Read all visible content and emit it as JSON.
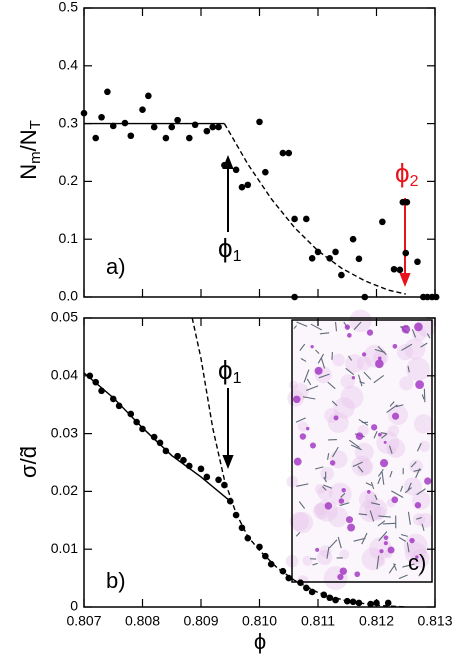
{
  "chart_data": [
    {
      "type": "scatter",
      "ylabel_parts": [
        {
          "text": "N"
        },
        {
          "text": "m",
          "sub": true
        },
        {
          "text": "/N"
        },
        {
          "text": "T",
          "sub": true
        }
      ],
      "annotations": {
        "panel": "a)",
        "phi1": {
          "text": "ϕ",
          "sub": "1"
        },
        "phi2": {
          "text": "ϕ",
          "sub": "2"
        }
      },
      "xlim": [
        0.807,
        0.813
      ],
      "ylim": [
        0,
        0.5
      ],
      "yticks": [
        {
          "value": 0,
          "label": "0.0"
        },
        0.1,
        0.2,
        0.3,
        0.4,
        0.5
      ],
      "points": {
        "color": "#000000",
        "x": [
          0.807,
          0.8072,
          0.8073,
          0.8074,
          0.8075,
          0.8077,
          0.8078,
          0.808,
          0.8081,
          0.8082,
          0.8084,
          0.8085,
          0.8086,
          0.8088,
          0.8089,
          0.8091,
          0.8092,
          0.8093,
          0.8094,
          0.8096,
          0.8097,
          0.8098,
          0.81,
          0.8101,
          0.8104,
          0.8105,
          0.8106,
          0.8106,
          0.8108,
          0.8109,
          0.811,
          0.8112,
          0.8113,
          0.8114,
          0.8116,
          0.8117,
          0.8118,
          0.8121,
          0.8123,
          0.8124,
          0.81245,
          0.81252,
          0.8125,
          0.8127,
          0.8128,
          0.81287,
          0.81295,
          0.81302
        ],
        "values": [
          0.318,
          0.275,
          0.311,
          0.355,
          0.296,
          0.301,
          0.279,
          0.324,
          0.348,
          0.294,
          0.275,
          0.294,
          0.306,
          0.275,
          0.298,
          0.287,
          0.294,
          0.294,
          0.228,
          0.22,
          0.19,
          0.194,
          0.303,
          0.216,
          0.249,
          0.249,
          0,
          0.135,
          0.135,
          0.067,
          0.078,
          0.067,
          0.078,
          0.038,
          0.1,
          0.066,
          0,
          0.13,
          0.048,
          0.047,
          0.164,
          0.164,
          0.076,
          0.061,
          0,
          0,
          0,
          0
        ]
      },
      "lines": [
        {
          "style": "solid",
          "color": "#000000",
          "x": [
            0.807,
            0.8094
          ],
          "values": [
            0.3,
            0.3
          ]
        },
        {
          "style": "dashed",
          "color": "#000000",
          "x": [
            0.8094,
            0.8098,
            0.8102,
            0.8106,
            0.811,
            0.8114,
            0.8118,
            0.8122,
            0.8125
          ],
          "values": [
            0.3,
            0.23,
            0.17,
            0.12,
            0.08,
            0.05,
            0.028,
            0.012,
            0.005
          ]
        }
      ]
    },
    {
      "type": "scatter",
      "xlabel": "ϕ",
      "ylabel": "σ/d̃",
      "annotations": {
        "panel": "b)",
        "inset": "c)",
        "phi1": {
          "text": "ϕ",
          "sub": "1"
        }
      },
      "xlim": [
        0.807,
        0.813
      ],
      "xticks": [
        0.807,
        0.808,
        0.809,
        {
          "value": 0.81,
          "label": "0.810"
        },
        0.811,
        0.812,
        0.813
      ],
      "ylim": [
        0,
        0.05
      ],
      "yticks": [
        0,
        0.01,
        0.02,
        0.03,
        0.04,
        0.05
      ],
      "points": {
        "color": "#000000",
        "x": [
          0.8071,
          0.8072,
          0.8073,
          0.8075,
          0.8076,
          0.8078,
          0.8079,
          0.808,
          0.8082,
          0.8083,
          0.8084,
          0.8086,
          0.8087,
          0.8088,
          0.809,
          0.8091,
          0.8093,
          0.8094,
          0.8095,
          0.8096,
          0.8097,
          0.8098,
          0.81,
          0.8101,
          0.8102,
          0.8104,
          0.8105,
          0.8107,
          0.8108,
          0.8109,
          0.8111,
          0.8112,
          0.8113,
          0.8115,
          0.8116,
          0.8117,
          0.8119,
          0.812,
          0.8122
        ],
        "values": [
          0.04,
          0.0389,
          0.0374,
          0.036,
          0.0348,
          0.0334,
          0.032,
          0.0308,
          0.0294,
          0.0284,
          0.027,
          0.0261,
          0.0254,
          0.0244,
          0.0239,
          0.0225,
          0.022,
          0.0211,
          0.0183,
          0.0159,
          0.0137,
          0.0119,
          0.0104,
          0.0088,
          0.0074,
          0.0062,
          0.005,
          0.0042,
          0.0033,
          0.0026,
          0.0021,
          0.0016,
          0.0012,
          0.001,
          0.0009,
          0.0007,
          0.0005,
          0.0007,
          0.0007
        ]
      },
      "lines": [
        {
          "style": "solid",
          "color": "#000000",
          "x": [
            0.807,
            0.8075,
            0.808,
            0.8085,
            0.809,
            0.8095
          ],
          "values": [
            0.0405,
            0.0362,
            0.031,
            0.0262,
            0.0225,
            0.0183
          ]
        },
        {
          "style": "dashed",
          "color": "#000000",
          "x": [
            0.80885,
            0.809,
            0.8092,
            0.8094,
            0.8096,
            0.8098,
            0.81,
            0.8103,
            0.8106,
            0.811,
            0.8115,
            0.812,
            0.8125
          ],
          "values": [
            0.05,
            0.043,
            0.031,
            0.022,
            0.0162,
            0.0122,
            0.0098,
            0.0068,
            0.0046,
            0.0025,
            0.001,
            0.0003,
            0
          ]
        }
      ]
    }
  ]
}
